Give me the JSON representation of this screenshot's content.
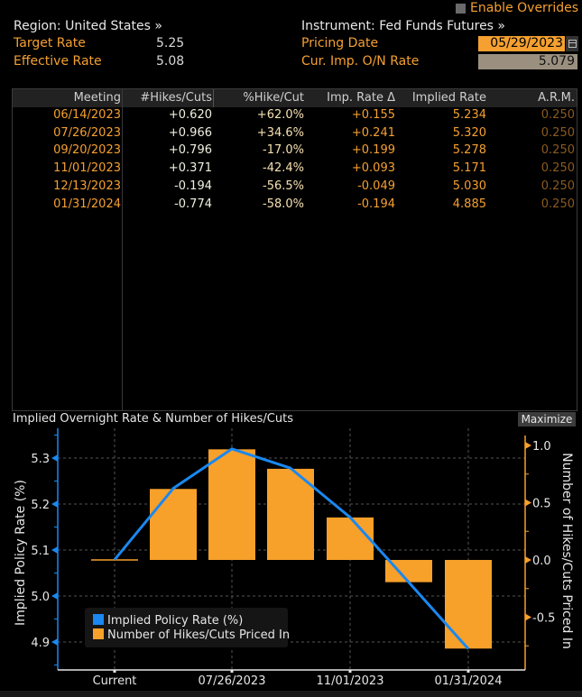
{
  "header": {
    "region_label": "Region: United States »",
    "instrument_label": "Instrument: Fed Funds Futures »",
    "enable_overrides_label": "Enable Overrides",
    "enable_overrides_checked": false,
    "target_rate_label": "Target Rate",
    "target_rate_value": "5.25",
    "effective_rate_label": "Effective Rate",
    "effective_rate_value": "5.08",
    "pricing_date_label": "Pricing Date",
    "pricing_date_value": "05/29/2023",
    "cur_imp_rate_label": "Cur. Imp. O/N Rate",
    "cur_imp_rate_value": "5.079"
  },
  "table": {
    "columns": [
      "Meeting",
      "#Hikes/Cuts",
      "%Hike/Cut",
      "Imp. Rate Δ",
      "Implied Rate",
      "A.R.M."
    ],
    "rows": [
      {
        "meeting": "06/14/2023",
        "hikes": "+0.620",
        "pct": "+62.0%",
        "delta": "+0.155",
        "rate": "5.234",
        "arm": "0.250"
      },
      {
        "meeting": "07/26/2023",
        "hikes": "+0.966",
        "pct": "+34.6%",
        "delta": "+0.241",
        "rate": "5.320",
        "arm": "0.250"
      },
      {
        "meeting": "09/20/2023",
        "hikes": "+0.796",
        "pct": "-17.0%",
        "delta": "+0.199",
        "rate": "5.278",
        "arm": "0.250"
      },
      {
        "meeting": "11/01/2023",
        "hikes": "+0.371",
        "pct": "-42.4%",
        "delta": "+0.093",
        "rate": "5.171",
        "arm": "0.250"
      },
      {
        "meeting": "12/13/2023",
        "hikes": "-0.194",
        "pct": "-56.5%",
        "delta": "-0.049",
        "rate": "5.030",
        "arm": "0.250"
      },
      {
        "meeting": "01/31/2024",
        "hikes": "-0.774",
        "pct": "-58.0%",
        "delta": "-0.194",
        "rate": "4.885",
        "arm": "0.250"
      }
    ]
  },
  "chart_panel": {
    "title": "Implied Overnight Rate & Number of Hikes/Cuts",
    "maximize_label": "Maximize"
  },
  "chart_data": {
    "type": "bar",
    "title": "Implied Overnight Rate & Number of Hikes/Cuts",
    "categories": [
      "Current",
      "06/14/2023",
      "07/26/2023",
      "09/20/2023",
      "11/01/2023",
      "12/13/2023",
      "01/31/2024"
    ],
    "x_tick_labels": [
      "Current",
      "07/26/2023",
      "11/01/2023",
      "01/31/2024"
    ],
    "series": [
      {
        "name": "Implied Policy Rate (%)",
        "type": "line",
        "axis": "left",
        "color": "#1a88f0",
        "values": [
          5.079,
          5.234,
          5.32,
          5.278,
          5.171,
          5.03,
          4.885
        ]
      },
      {
        "name": "Number of Hikes/Cuts Priced In",
        "type": "bar",
        "axis": "right",
        "color": "#f7a02a",
        "values": [
          0,
          0.62,
          0.966,
          0.796,
          0.371,
          -0.194,
          -0.774
        ]
      }
    ],
    "left_axis": {
      "label": "Implied Policy Rate (%)",
      "ticks": [
        "4.9",
        "5.0",
        "5.1",
        "5.2",
        "5.3"
      ],
      "range": [
        4.85,
        5.365
      ]
    },
    "right_axis": {
      "label": "Number of Hikes/Cuts Priced In",
      "ticks": [
        "-0.5",
        "0.0",
        "0.5",
        "1.0"
      ],
      "range": [
        -0.96,
        1.14
      ]
    },
    "grid": true,
    "legend_position": "bottom-left"
  }
}
